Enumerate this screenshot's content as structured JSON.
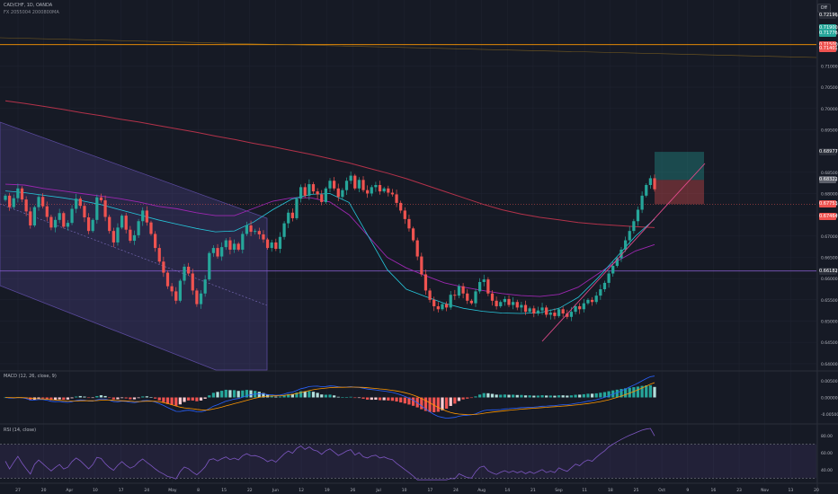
{
  "header": {
    "symbol_line": "CAD/CHF, 1D, OANDA",
    "indicator_line": "FX 2055004 2000800MA"
  },
  "toolbar": {
    "off_label": "Off"
  },
  "colors": {
    "bg": "#161a25",
    "grid": "#1f2330",
    "up": "#26a69a",
    "down": "#ef5350",
    "channel": "#5b4a9e",
    "ma_red": "#b3324a",
    "ma_purple": "#9c27b0",
    "ma_teal": "#26c6da",
    "orange_line": "#ff9800",
    "purple_line": "#7e57c2",
    "macd_line": "#2962ff",
    "signal_line": "#ff9800",
    "rsi_line": "#7e57c2"
  },
  "chart_data": [
    {
      "type": "candlestick",
      "title": "CAD/CHF, 1D, OANDA",
      "y_axis_ticks": [
        "0.72196",
        "0.71900",
        "0.71776",
        "0.71500",
        "0.71401",
        "0.71000",
        "0.70500",
        "0.70000",
        "0.69500",
        "0.68977",
        "0.68500",
        "0.68322",
        "0.68000",
        "0.67753",
        "0.67500",
        "0.67464",
        "0.67000",
        "0.66500",
        "0.66182",
        "0.66000",
        "0.65500",
        "0.65000",
        "0.64500",
        "0.64000"
      ],
      "price_badges": [
        {
          "value": "0.72196",
          "color": "#2a2e39"
        },
        {
          "value": "0.71900",
          "color": "#26a69a"
        },
        {
          "value": "0.71776",
          "color": "#26a69a"
        },
        {
          "value": "0.71500",
          "color": "#ef5350"
        },
        {
          "value": "0.71401",
          "color": "#ef5350"
        },
        {
          "value": "0.68977",
          "color": "#2a2e39"
        },
        {
          "value": "0.68322",
          "color": "#5d606b"
        },
        {
          "value": "0.67753",
          "color": "#ef5350"
        },
        {
          "value": "0.67464",
          "color": "#ef5350"
        },
        {
          "value": "0.66182",
          "color": "#2a2e39"
        }
      ],
      "x_axis_ticks": [
        "27",
        "20",
        "Apr",
        "10",
        "17",
        "24",
        "May",
        "8",
        "15",
        "22",
        "Jun",
        "12",
        "19",
        "26",
        "Jul",
        "10",
        "17",
        "24",
        "Aug",
        "14",
        "21",
        "Sep",
        "11",
        "18",
        "25",
        "Oct",
        "9",
        "16",
        "23",
        "Nov",
        "13",
        "20"
      ],
      "ylim": [
        0.6385,
        0.7255
      ],
      "horizontal_levels": [
        {
          "name": "resistance",
          "value": 0.715
        },
        {
          "name": "support",
          "value": 0.6618
        }
      ],
      "trade_box": {
        "entry": 0.6832,
        "target": 0.6898,
        "stop": 0.6775
      },
      "candles_close": [
        0.6795,
        0.6768,
        0.6789,
        0.6812,
        0.6786,
        0.6758,
        0.6725,
        0.6768,
        0.6792,
        0.677,
        0.6745,
        0.672,
        0.6738,
        0.6754,
        0.6722,
        0.6731,
        0.6764,
        0.6788,
        0.6771,
        0.6744,
        0.6712,
        0.6738,
        0.6791,
        0.6784,
        0.6745,
        0.6712,
        0.6685,
        0.672,
        0.6748,
        0.6715,
        0.6689,
        0.6702,
        0.6735,
        0.676,
        0.6732,
        0.6705,
        0.6672,
        0.664,
        0.6614,
        0.6582,
        0.657,
        0.6548,
        0.6595,
        0.6628,
        0.6612,
        0.6572,
        0.654,
        0.6565,
        0.6598,
        0.666,
        0.6672,
        0.6652,
        0.6674,
        0.669,
        0.6668,
        0.6682,
        0.6668,
        0.6705,
        0.6725,
        0.671,
        0.6712,
        0.6704,
        0.6692,
        0.6672,
        0.6685,
        0.667,
        0.6698,
        0.673,
        0.6755,
        0.6742,
        0.6788,
        0.6815,
        0.6795,
        0.6822,
        0.6805,
        0.6798,
        0.678,
        0.6812,
        0.683,
        0.6812,
        0.6792,
        0.6808,
        0.683,
        0.6842,
        0.6812,
        0.6832,
        0.6808,
        0.68,
        0.6815,
        0.682,
        0.6805,
        0.6812,
        0.6802,
        0.6798,
        0.6778,
        0.676,
        0.674,
        0.6718,
        0.669,
        0.6652,
        0.661,
        0.6572,
        0.655,
        0.6535,
        0.6528,
        0.654,
        0.6532,
        0.6562,
        0.656,
        0.6582,
        0.6565,
        0.6548,
        0.6542,
        0.657,
        0.6592,
        0.6598,
        0.6565,
        0.6548,
        0.6535,
        0.6545,
        0.6552,
        0.6538,
        0.6545,
        0.6532,
        0.6538,
        0.6522,
        0.653,
        0.6518,
        0.6525,
        0.6532,
        0.6515,
        0.652,
        0.6512,
        0.6528,
        0.6518,
        0.651,
        0.6522,
        0.6535,
        0.6528,
        0.6542,
        0.655,
        0.6545,
        0.656,
        0.6575,
        0.659,
        0.6612,
        0.663,
        0.6648,
        0.6668,
        0.669,
        0.6712,
        0.6735,
        0.6762,
        0.6795,
        0.682,
        0.6836,
        0.681
      ],
      "ma_red": [
        0.7018,
        0.7012,
        0.7005,
        0.6998,
        0.699,
        0.6983,
        0.6975,
        0.6968,
        0.696,
        0.6952,
        0.6944,
        0.6935,
        0.6927,
        0.6918,
        0.691,
        0.6901,
        0.6892,
        0.6882,
        0.6872,
        0.686,
        0.6848,
        0.6835,
        0.682,
        0.6805,
        0.679,
        0.6775,
        0.6762,
        0.6752,
        0.6744,
        0.6738,
        0.6732,
        0.6728,
        0.6725,
        0.6722,
        0.672
      ],
      "ma_purple": [
        0.6822,
        0.682,
        0.6812,
        0.6806,
        0.68,
        0.6794,
        0.6788,
        0.678,
        0.677,
        0.6764,
        0.6755,
        0.6748,
        0.6748,
        0.6765,
        0.6782,
        0.679,
        0.679,
        0.678,
        0.675,
        0.67,
        0.665,
        0.6625,
        0.6607,
        0.659,
        0.658,
        0.6572,
        0.6565,
        0.656,
        0.6558,
        0.6563,
        0.658,
        0.661,
        0.664,
        0.6665,
        0.668
      ],
      "ma_teal": [
        0.6806,
        0.6802,
        0.6796,
        0.679,
        0.6783,
        0.6774,
        0.6762,
        0.675,
        0.6738,
        0.6728,
        0.6718,
        0.671,
        0.6712,
        0.6733,
        0.6762,
        0.6787,
        0.6798,
        0.68,
        0.6779,
        0.67,
        0.6621,
        0.6575,
        0.6558,
        0.6542,
        0.653,
        0.6523,
        0.6519,
        0.6518,
        0.652,
        0.653,
        0.6556,
        0.66,
        0.665,
        0.67,
        0.674
      ]
    },
    {
      "type": "histogram",
      "title": "MACD (12, 26, close, 9)",
      "y_axis_ticks": [
        "0.00500",
        "0.00000",
        "-0.00500"
      ],
      "ylim": [
        -0.0078,
        0.0078
      ]
    },
    {
      "type": "line",
      "title": "RSI (14, close)",
      "y_axis_ticks": [
        "80.00",
        "60.00",
        "40.00"
      ],
      "ylim": [
        25,
        93
      ],
      "bands": [
        70,
        30
      ]
    }
  ]
}
